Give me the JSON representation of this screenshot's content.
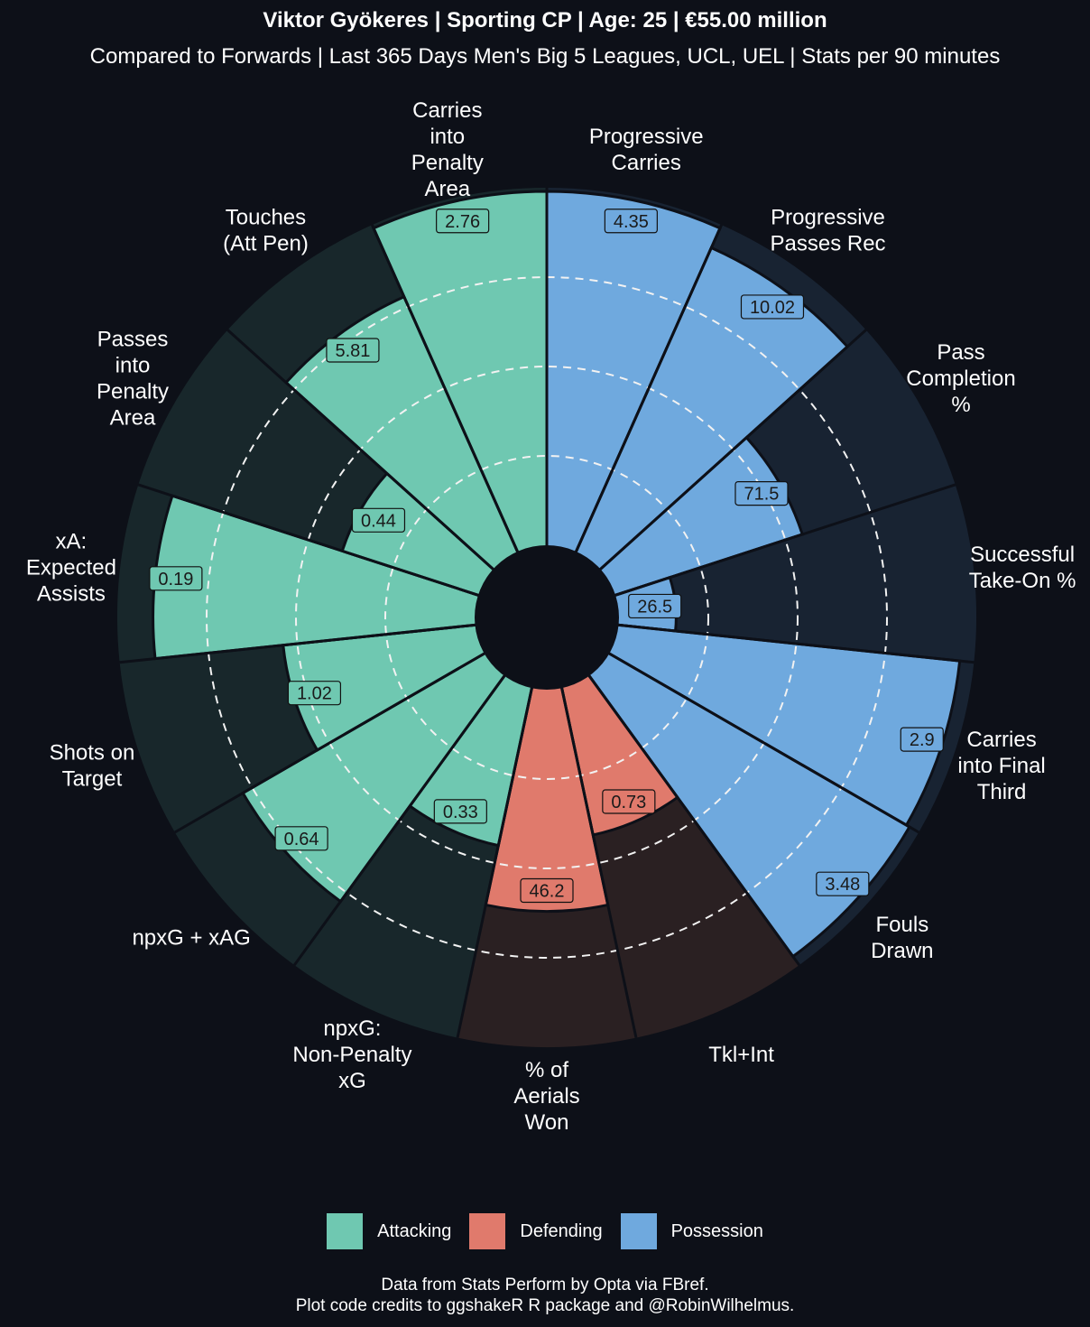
{
  "header": {
    "title": "Viktor Gyökeres | Sporting CP | Age: 25 | €55.00 million",
    "subtitle": "Compared to Forwards | Last 365 Days Men's Big 5 Leagues, UCL, UEL | Stats per 90 minutes"
  },
  "caption": {
    "line1": "Data from Stats Perform by Opta via FBref.",
    "line2": "Plot code credits to ggshakeR R package and @RobinWilhelmus."
  },
  "colors": {
    "background": "#0d1018",
    "Attacking": "#6fc8b1",
    "Defending": "#e07a6c",
    "Possession": "#6fa9de",
    "Attacking_bg": "#18272b",
    "Defending_bg": "#2a2022",
    "Possession_bg": "#182332"
  },
  "chart_data": {
    "type": "pie",
    "subtype": "polar-bar-pizza",
    "radial_range": [
      0,
      100
    ],
    "radial_gridlines": [
      25,
      50,
      75
    ],
    "legend_position": "bottom",
    "categories": [
      "Possession",
      "Possession",
      "Possession",
      "Possession",
      "Possession",
      "Possession",
      "Defending",
      "Defending",
      "Attacking",
      "Attacking",
      "Attacking",
      "Attacking",
      "Attacking",
      "Attacking",
      "Attacking"
    ],
    "legend": [
      "Attacking",
      "Defending",
      "Possession"
    ],
    "items": [
      {
        "label": [
          "Progressive",
          "Carries"
        ],
        "group": "Possession",
        "value": "4.35",
        "percentile": 99
      },
      {
        "label": [
          "Progressive",
          "Passes Rec"
        ],
        "group": "Possession",
        "value": "10.02",
        "percentile": 93
      },
      {
        "label": [
          "Pass",
          "Completion",
          "%"
        ],
        "group": "Possession",
        "value": "71.5",
        "percentile": 55
      },
      {
        "label": [
          "Successful",
          "Take-On %"
        ],
        "group": "Possession",
        "value": "26.5",
        "percentile": 16
      },
      {
        "label": [
          "Carries",
          "into Final",
          "Third"
        ],
        "group": "Possession",
        "value": "2.9",
        "percentile": 96
      },
      {
        "label": [
          "Fouls",
          "Drawn"
        ],
        "group": "Possession",
        "value": "3.48",
        "percentile": 97
      },
      {
        "label": [
          "Tkl+Int"
        ],
        "group": "Defending",
        "value": "0.73",
        "percentile": 42
      },
      {
        "label": [
          "% of",
          "Aerials",
          "Won"
        ],
        "group": "Defending",
        "value": "46.2",
        "percentile": 62
      },
      {
        "label": [
          "npxG:",
          "Non-Penalty",
          "xG"
        ],
        "group": "Attacking",
        "value": "0.33",
        "percentile": 45
      },
      {
        "label": [
          "npxG + xAG"
        ],
        "group": "Attacking",
        "value": "0.64",
        "percentile": 78
      },
      {
        "label": [
          "Shots on",
          "Target"
        ],
        "group": "Attacking",
        "value": "1.02",
        "percentile": 54
      },
      {
        "label": [
          "xA:",
          "Expected",
          "Assists"
        ],
        "group": "Attacking",
        "value": "0.19",
        "percentile": 90
      },
      {
        "label": [
          "Passes",
          "into",
          "Penalty",
          "Area"
        ],
        "group": "Attacking",
        "value": "0.44",
        "percentile": 40
      },
      {
        "label": [
          "Touches",
          "(Att Pen)"
        ],
        "group": "Attacking",
        "value": "5.81",
        "percentile": 78
      },
      {
        "label": [
          "Carries",
          "into",
          "Penalty",
          "Area"
        ],
        "group": "Attacking",
        "value": "2.76",
        "percentile": 99
      }
    ]
  }
}
